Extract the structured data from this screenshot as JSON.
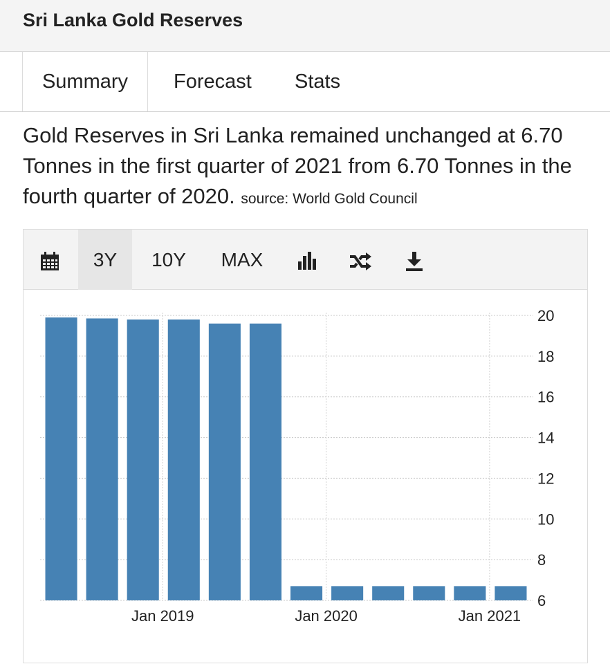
{
  "header": {
    "title": "Sri Lanka Gold Reserves"
  },
  "tabs": [
    {
      "label": "Summary"
    },
    {
      "label": "Forecast"
    },
    {
      "label": "Stats"
    }
  ],
  "summary": {
    "text": "Gold Reserves in Sri Lanka remained unchanged at 6.70 Tonnes in the first quarter of 2021 from 6.70 Tonnes in the fourth quarter of 2020.",
    "source": "source: World Gold Council"
  },
  "toolbar": {
    "calendar_icon": "calendar-icon",
    "ranges": [
      "3Y",
      "10Y",
      "MAX"
    ],
    "selected_range": "3Y",
    "bar_icon": "bar-chart-icon",
    "shuffle_icon": "shuffle-icon",
    "download_icon": "download-icon"
  },
  "chart_data": {
    "type": "bar",
    "categories": [
      "2018 Q2",
      "2018 Q3",
      "2018 Q4",
      "2019 Q1",
      "2019 Q2",
      "2019 Q3",
      "2019 Q4",
      "2020 Q1",
      "2020 Q2",
      "2020 Q3",
      "2020 Q4",
      "2021 Q1"
    ],
    "values": [
      19.9,
      19.85,
      19.8,
      19.8,
      19.6,
      19.6,
      6.7,
      6.7,
      6.7,
      6.7,
      6.7,
      6.7
    ],
    "x_tick_labels": [
      {
        "label": "Jan 2019",
        "category": "2019 Q1"
      },
      {
        "label": "Jan 2020",
        "category": "2020 Q1"
      },
      {
        "label": "Jan 2021",
        "category": "2021 Q1"
      }
    ],
    "y_ticks": [
      6,
      8,
      10,
      12,
      14,
      16,
      18,
      20
    ],
    "ylim": [
      6,
      20
    ],
    "y_axis_position": "right",
    "grid": true,
    "bar_color": "#4682b4"
  }
}
